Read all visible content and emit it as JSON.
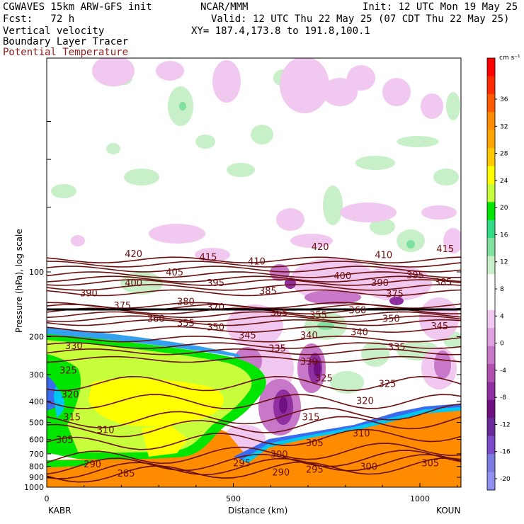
{
  "header": {
    "model": "CGWAVES 15km ARW-GFS init",
    "org": "NCAR/MMM",
    "init": "Init: 12 UTC Mon 19 May 25",
    "fcst": "Fcst:   72 h",
    "valid": "Valid: 12 UTC Thu 22 May 25 (07 CDT Thu 22 May 25)",
    "xy": "XY= 187.4,173.8 to 191.8,100.1",
    "field1": "Vertical velocity",
    "field2": "Boundary Layer Tracer",
    "field3": "Potential Temperature"
  },
  "chart_data": {
    "type": "heatmap",
    "xlabel": "Distance (km)",
    "ylabel": "Pressure (hPa), log scale",
    "xlim": [
      0,
      1110
    ],
    "ylim": [
      1000,
      10
    ],
    "y_scale": "log",
    "x_ticks": [
      "0",
      "500",
      "1000"
    ],
    "y_ticks": [
      "100",
      "200",
      "300",
      "400",
      "500",
      "600",
      "700",
      "800",
      "900",
      "1000"
    ],
    "endpoint_left": "KABR",
    "endpoint_right": "KOUN",
    "colorbar": {
      "units": "cm s⁻¹",
      "labels": [
        "36",
        "32",
        "28",
        "24",
        "20",
        "16",
        "12",
        "8",
        "4",
        "0",
        "-4",
        "-8",
        "-12",
        "-16",
        "-20"
      ],
      "colors": [
        "#ff0000",
        "#ff2a00",
        "#ff5a00",
        "#ff8c00",
        "#ffa500",
        "#ffc800",
        "#ffff00",
        "#c8ff3c",
        "#00e600",
        "#33dd88",
        "#7fe0a0",
        "#c8f0c8",
        "#ffffff",
        "#ffffff",
        "#f0c8f0",
        "#e0a0e0",
        "#c878c8",
        "#b050b0",
        "#9030a0",
        "#701080",
        "#6a2a9a",
        "#7a4ac8",
        "#7a7ae0",
        "#9090f0"
      ]
    },
    "isentropes": [
      {
        "value": "285",
        "p": 835
      },
      {
        "value": "290",
        "p": 800
      },
      {
        "value": "295",
        "p": 760
      },
      {
        "value": "300",
        "p": 700
      },
      {
        "value": "305",
        "p": 600
      },
      {
        "value": "310",
        "p": 520
      },
      {
        "value": "315",
        "p": 470
      },
      {
        "value": "320",
        "p": 400
      },
      {
        "value": "325",
        "p": 330
      },
      {
        "value": "330",
        "p": 255
      },
      {
        "value": "335",
        "p": 235
      },
      {
        "value": "340",
        "p": 220
      },
      {
        "value": "345",
        "p": 205
      },
      {
        "value": "350",
        "p": 185
      },
      {
        "value": "355",
        "p": 172
      },
      {
        "value": "360",
        "p": 165
      },
      {
        "value": "365",
        "p": 158
      },
      {
        "value": "370",
        "p": 152
      },
      {
        "value": "375",
        "p": 146
      },
      {
        "value": "380",
        "p": 143
      },
      {
        "value": "385",
        "p": 125
      },
      {
        "value": "390",
        "p": 118
      },
      {
        "value": "395",
        "p": 112
      },
      {
        "value": "400",
        "p": 108
      },
      {
        "value": "405",
        "p": 103
      },
      {
        "value": "410",
        "p": 97
      },
      {
        "value": "415",
        "p": 92
      },
      {
        "value": "420",
        "p": 88
      }
    ],
    "isentrope_labels": [
      {
        "text": "420",
        "x": 230,
        "p": 82
      },
      {
        "text": "415",
        "x": 430,
        "p": 85
      },
      {
        "text": "420",
        "x": 730,
        "p": 76
      },
      {
        "text": "410",
        "x": 560,
        "p": 89
      },
      {
        "text": "410",
        "x": 900,
        "p": 83
      },
      {
        "text": "415",
        "x": 1065,
        "p": 78
      },
      {
        "text": "405",
        "x": 340,
        "p": 100
      },
      {
        "text": "400",
        "x": 230,
        "p": 112
      },
      {
        "text": "395",
        "x": 450,
        "p": 112
      },
      {
        "text": "385",
        "x": 590,
        "p": 122
      },
      {
        "text": "400",
        "x": 790,
        "p": 104
      },
      {
        "text": "390",
        "x": 890,
        "p": 112
      },
      {
        "text": "395",
        "x": 985,
        "p": 103
      },
      {
        "text": "385",
        "x": 1060,
        "p": 111
      },
      {
        "text": "390",
        "x": 110,
        "p": 125
      },
      {
        "text": "375",
        "x": 930,
        "p": 126
      },
      {
        "text": "375",
        "x": 200,
        "p": 143
      },
      {
        "text": "380",
        "x": 370,
        "p": 137
      },
      {
        "text": "370",
        "x": 450,
        "p": 145
      },
      {
        "text": "365",
        "x": 620,
        "p": 154
      },
      {
        "text": "355",
        "x": 725,
        "p": 158
      },
      {
        "text": "360",
        "x": 830,
        "p": 150
      },
      {
        "text": "350",
        "x": 920,
        "p": 164
      },
      {
        "text": "360",
        "x": 290,
        "p": 164
      },
      {
        "text": "355",
        "x": 370,
        "p": 172
      },
      {
        "text": "350",
        "x": 450,
        "p": 180
      },
      {
        "text": "345",
        "x": 535,
        "p": 196
      },
      {
        "text": "340",
        "x": 700,
        "p": 196
      },
      {
        "text": "340",
        "x": 835,
        "p": 190
      },
      {
        "text": "345",
        "x": 1050,
        "p": 178
      },
      {
        "text": "335",
        "x": 615,
        "p": 226
      },
      {
        "text": "335",
        "x": 935,
        "p": 222
      },
      {
        "text": "330",
        "x": 70,
        "p": 220
      },
      {
        "text": "330",
        "x": 700,
        "p": 260
      },
      {
        "text": "325",
        "x": 740,
        "p": 310
      },
      {
        "text": "325",
        "x": 55,
        "p": 285
      },
      {
        "text": "325",
        "x": 910,
        "p": 330
      },
      {
        "text": "320",
        "x": 850,
        "p": 395
      },
      {
        "text": "320",
        "x": 60,
        "p": 370
      },
      {
        "text": "315",
        "x": 705,
        "p": 470
      },
      {
        "text": "315",
        "x": 65,
        "p": 470
      },
      {
        "text": "310",
        "x": 155,
        "p": 540
      },
      {
        "text": "310",
        "x": 840,
        "p": 560
      },
      {
        "text": "305",
        "x": 45,
        "p": 600
      },
      {
        "text": "305",
        "x": 715,
        "p": 620
      },
      {
        "text": "305",
        "x": 1025,
        "p": 770
      },
      {
        "text": "300",
        "x": 620,
        "p": 700
      },
      {
        "text": "300",
        "x": 860,
        "p": 800
      },
      {
        "text": "295",
        "x": 520,
        "p": 770
      },
      {
        "text": "295",
        "x": 715,
        "p": 825
      },
      {
        "text": "290",
        "x": 120,
        "p": 780
      },
      {
        "text": "290",
        "x": 625,
        "p": 850
      },
      {
        "text": "285",
        "x": 210,
        "p": 860
      }
    ]
  }
}
